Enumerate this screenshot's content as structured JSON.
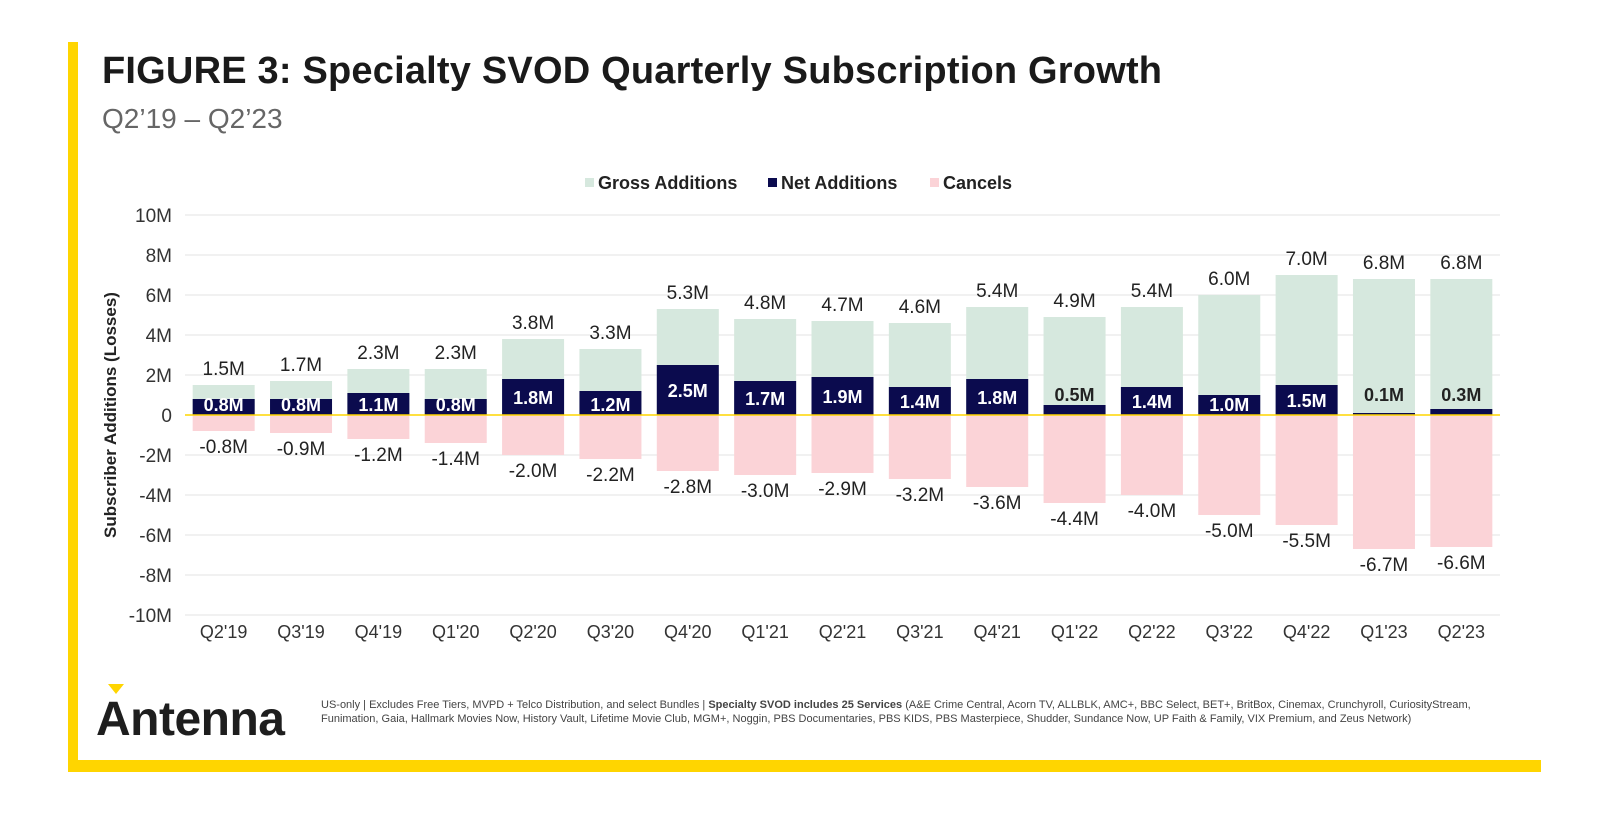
{
  "header": {
    "title": "FIGURE 3: Specialty SVOD Quarterly Subscription Growth",
    "subtitle": "Q2’19 – Q2’23"
  },
  "brand": {
    "logo_text": "Antenna",
    "accent_color": "#FFD500"
  },
  "footnote": {
    "part1": "US-only | Excludes Free Tiers, MVPD + Telco Distribution, and select Bundles | ",
    "bold": "Specialty SVOD includes 25 Services",
    "part2": " (A&E Crime Central, Acorn TV, ALLBLK, AMC+, BBC Select, BET+, BritBox, Cinemax, Crunchyroll, CuriosityStream, Funimation, Gaia, Hallmark Movies Now, History Vault, Lifetime Movie Club, MGM+, Noggin, PBS Documentaries, PBS KIDS, PBS Masterpiece, Shudder, Sundance Now, UP Faith & Family, VIX Premium, and Zeus Network)"
  },
  "chart_data": {
    "type": "bar",
    "categories": [
      "Q2'19",
      "Q3'19",
      "Q4'19",
      "Q1'20",
      "Q2'20",
      "Q3'20",
      "Q4'20",
      "Q1'21",
      "Q2'21",
      "Q3'21",
      "Q4'21",
      "Q1'22",
      "Q2'22",
      "Q3'22",
      "Q4'22",
      "Q1'23",
      "Q2'23"
    ],
    "series": [
      {
        "name": "Gross Additions",
        "color": "#D6E8DE",
        "values": [
          1.5,
          1.7,
          2.3,
          2.3,
          3.8,
          3.3,
          5.3,
          4.8,
          4.7,
          4.6,
          5.4,
          4.9,
          5.4,
          6.0,
          7.0,
          6.8,
          6.8
        ],
        "labels": [
          "1.5M",
          "1.7M",
          "2.3M",
          "2.3M",
          "3.8M",
          "3.3M",
          "5.3M",
          "4.8M",
          "4.7M",
          "4.6M",
          "5.4M",
          "4.9M",
          "5.4M",
          "6.0M",
          "7.0M",
          "6.8M",
          "6.8M"
        ]
      },
      {
        "name": "Net Additions",
        "color": "#0B0B4E",
        "values": [
          0.8,
          0.8,
          1.1,
          0.8,
          1.8,
          1.2,
          2.5,
          1.7,
          1.9,
          1.4,
          1.8,
          0.5,
          1.4,
          1.0,
          1.5,
          0.1,
          0.3
        ],
        "labels": [
          "0.8M",
          "0.8M",
          "1.1M",
          "0.8M",
          "1.8M",
          "1.2M",
          "2.5M",
          "1.7M",
          "1.9M",
          "1.4M",
          "1.8M",
          "0.5M",
          "1.4M",
          "1.0M",
          "1.5M",
          "0.1M",
          "0.3M"
        ]
      },
      {
        "name": "Cancels",
        "color": "#FBD3D7",
        "values": [
          -0.8,
          -0.9,
          -1.2,
          -1.4,
          -2.0,
          -2.2,
          -2.8,
          -3.0,
          -2.9,
          -3.2,
          -3.6,
          -4.4,
          -4.0,
          -5.0,
          -5.5,
          -6.7,
          -6.6
        ],
        "labels": [
          "-0.8M",
          "-0.9M",
          "-1.2M",
          "-1.4M",
          "-2.0M",
          "-2.2M",
          "-2.8M",
          "-3.0M",
          "-2.9M",
          "-3.2M",
          "-3.6M",
          "-4.4M",
          "-4.0M",
          "-5.0M",
          "-5.5M",
          "-6.7M",
          "-6.6M"
        ]
      }
    ],
    "ylabel": "Subscriber Additions (Losses)",
    "xlabel": "",
    "ylim": [
      -10,
      10
    ],
    "yticks": [
      10,
      8,
      6,
      4,
      2,
      0,
      -2,
      -4,
      -6,
      -8,
      -10
    ],
    "ytick_labels": [
      "10M",
      "8M",
      "6M",
      "4M",
      "2M",
      "0",
      "-2M",
      "-4M",
      "-6M",
      "-8M",
      "-10M"
    ],
    "grid": true,
    "legend_position": "top-center",
    "zero_line_color": "#FFD500"
  }
}
